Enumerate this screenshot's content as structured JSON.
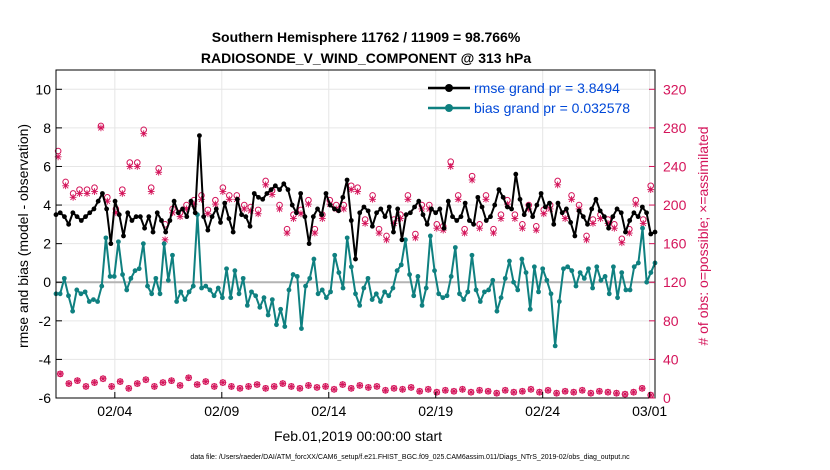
{
  "chart_data": {
    "type": "line",
    "title": "Southern Hemisphere 11762 / 11909 = 98.766%",
    "subtitle": "RADIOSONDE_V_WIND_COMPONENT @ 313 hPa",
    "xlabel": "Feb.01,2019 00:00:00 start",
    "ylabel": "rmse and bias (model - observation)",
    "y2label": "# of obs: o=possible; ×=assimilated",
    "footnote": "data file: /Users/raeder/DAI/ATM_forcXX/CAM6_setup/f.e21.FHIST_BGC.f09_025.CAM6assim.011/Diags_NTrS_2019-02/obs_diag_output.nc",
    "xlim": [
      1.0,
      29.0
    ],
    "ylim": [
      -6,
      11
    ],
    "y2lim": [
      0,
      340
    ],
    "x_ticks": [
      3.75,
      8.75,
      13.75,
      18.75,
      23.75,
      28.75
    ],
    "x_tick_labels": [
      "02/04",
      "02/09",
      "02/14",
      "02/19",
      "02/24",
      "03/01"
    ],
    "y_ticks": [
      -6,
      -4,
      -2,
      0,
      2,
      4,
      6,
      8,
      10
    ],
    "y_tick_labels": [
      "-6",
      "-4",
      "-2",
      "0",
      "2",
      "4",
      "6",
      "8",
      "10"
    ],
    "y2_ticks": [
      0,
      40,
      80,
      120,
      160,
      200,
      240,
      280,
      320
    ],
    "y2_tick_labels": [
      "0",
      "40",
      "80",
      "120",
      "160",
      "200",
      "240",
      "280",
      "320"
    ],
    "grid": true,
    "legend_position": "top-right",
    "colors": {
      "rmse": "#000000",
      "bias": "#0f8080",
      "obs": "#d4145a",
      "zero_line": "#b4b4b4",
      "legend_text": "#0048d8",
      "grid": "#e6e6e6"
    },
    "series": [
      {
        "name": "rmse grand pr = 3.8494",
        "values": [
          3.5,
          3.6,
          3.4,
          3.0,
          3.6,
          3.4,
          3.2,
          3.4,
          3.6,
          3.8,
          4.2,
          4.6,
          3.8,
          2.0,
          4.2,
          3.5,
          2.4,
          3.6,
          3.2,
          3.4,
          3.4,
          2.8,
          3.4,
          2.6,
          3.6,
          3.2,
          2.6,
          3.2,
          4.2,
          3.6,
          3.8,
          3.4,
          4.2,
          3.6,
          7.6,
          3.4,
          2.7,
          3.4,
          3.8,
          3.1,
          4.1,
          3.3,
          2.6,
          4.3,
          3.5,
          3.4,
          2.9,
          4.6,
          4.4,
          4.3,
          4.6,
          4.8,
          5.0,
          4.8,
          5.1,
          4.8,
          4.0,
          3.6,
          4.6,
          3.4,
          2.0,
          3.4,
          3.8,
          3.5,
          4.6,
          4.0,
          3.8,
          3.7,
          4.4,
          5.3,
          3.2,
          1.2,
          3.6,
          3.9,
          3.7,
          2.9,
          3.6,
          3.8,
          3.4,
          3.9,
          2.6,
          3.8,
          2.2,
          3.5,
          3.6,
          3.9,
          4.2,
          3.5,
          3.0,
          3.8,
          3.6,
          3.8,
          2.8,
          4.2,
          3.4,
          3.2,
          3.4,
          4.1,
          3.2,
          3.0,
          4.4,
          3.9,
          3.2,
          3.4,
          4.0,
          4.8,
          4.4,
          3.9,
          3.8,
          5.6,
          4.3,
          3.5,
          4.0,
          3.4,
          4.0,
          4.6,
          3.9,
          4.1,
          3.0,
          4.1,
          3.6,
          3.8,
          3.1,
          2.4,
          3.7,
          3.4,
          3.0,
          3.8,
          4.3,
          3.7,
          3.4,
          2.8,
          3.4,
          3.8,
          3.6,
          2.6,
          3.2,
          3.6,
          3.4,
          3.9,
          3.6,
          2.5,
          2.6
        ],
        "color": "#000000"
      },
      {
        "name": "bias grand pr = 0.032578",
        "values": [
          -0.6,
          -0.6,
          0.2,
          -0.7,
          -1.5,
          -0.4,
          -0.6,
          -0.5,
          -1.0,
          -0.9,
          -1.0,
          -0.2,
          2.3,
          0.3,
          0.3,
          2.1,
          0.4,
          -0.4,
          0.2,
          0.6,
          0.7,
          2.0,
          -0.2,
          -0.6,
          0.2,
          -0.6,
          2.0,
          0.1,
          1.4,
          -1.0,
          -0.5,
          -0.9,
          -0.5,
          -0.2,
          3.5,
          -0.3,
          -0.2,
          -0.4,
          -0.7,
          -0.3,
          -0.8,
          0.7,
          -0.8,
          0.6,
          -0.6,
          0.2,
          -1.2,
          -0.5,
          -0.7,
          -1.3,
          -0.8,
          -1.7,
          -0.9,
          -2.2,
          -1.4,
          -2.3,
          -0.4,
          0.4,
          0.3,
          -2.4,
          -0.2,
          0.2,
          1.2,
          -0.6,
          -0.4,
          -0.8,
          -0.5,
          1.4,
          0.5,
          -0.3,
          2.3,
          0.8,
          -0.6,
          -1.2,
          -0.3,
          0.2,
          -0.9,
          -0.6,
          -1.0,
          -0.5,
          -0.7,
          -0.3,
          0.6,
          0.9,
          2.2,
          0.4,
          -0.7,
          0.3,
          -1.2,
          -0.3,
          2.4,
          0.6,
          -0.6,
          -0.8,
          -0.7,
          0.3,
          1.8,
          -0.6,
          -0.9,
          -0.5,
          1.4,
          -0.4,
          -1.0,
          -0.5,
          -0.4,
          0.1,
          -1.5,
          -0.8,
          0.2,
          1.1,
          0.0,
          -0.4,
          1.2,
          0.5,
          -1.4,
          0.8,
          -0.5,
          0.7,
          0.1,
          -0.6,
          -3.3,
          -1.0,
          0.7,
          0.8,
          0.6,
          -0.2,
          0.5,
          0.2,
          0.7,
          -0.3,
          0.8,
          0.1,
          0.3,
          -0.6,
          0.8,
          -0.8,
          0.5,
          -0.4,
          -0.4,
          0.8,
          1.0,
          2.8,
          0.0,
          0.5,
          1.0
        ],
        "color": "#0f8080"
      },
      {
        "name": "# of obs possible",
        "x": [
          1.1,
          1.45,
          1.8,
          2.1,
          2.45,
          2.8,
          3.1,
          3.4,
          3.8,
          4.1,
          4.45,
          4.8,
          5.1,
          5.45,
          5.8,
          6.1,
          6.45,
          6.8,
          7.1,
          7.45,
          7.8,
          8.1,
          8.45,
          8.8,
          9.1,
          9.45,
          9.8,
          10.1,
          10.45,
          10.8,
          11.1,
          11.45,
          11.8,
          12.1,
          12.45,
          12.8,
          13.1,
          13.45,
          13.8,
          14.1,
          14.45,
          14.8,
          15.1,
          15.45,
          15.8,
          16.1,
          16.45,
          16.8,
          17.1,
          17.45,
          17.8,
          18.1,
          18.45,
          18.8,
          19.1,
          19.45,
          19.8,
          20.1,
          20.45,
          20.8,
          21.1,
          21.45,
          21.8,
          22.1,
          22.45,
          22.8,
          23.1,
          23.45,
          23.8,
          24.1,
          24.45,
          24.8,
          25.1,
          25.45,
          25.8,
          26.1,
          26.45,
          26.8,
          27.1,
          27.45,
          27.8,
          28.1,
          28.45,
          28.8
        ],
        "y": [
          256,
          224,
          212,
          216,
          216,
          218,
          282,
          208,
          196,
          216,
          244,
          244,
          278,
          218,
          238,
          180,
          196,
          192,
          200,
          205,
          210,
          195,
          205,
          218,
          210,
          210,
          200,
          198,
          195,
          225,
          215,
          200,
          175,
          190,
          195,
          205,
          175,
          190,
          205,
          200,
          200,
          220,
          218,
          185,
          210,
          175,
          168,
          185,
          190,
          210,
          170,
          200,
          200,
          180,
          178,
          245,
          210,
          175,
          230,
          180,
          210,
          175,
          190,
          205,
          190,
          180,
          200,
          178,
          195,
          200,
          225,
          190,
          210,
          200,
          168,
          185,
          190,
          185,
          180,
          165,
          175,
          205,
          185,
          220
        ],
        "color": "#d4145a"
      },
      {
        "name": "# of obs assimilated",
        "x": [
          1.1,
          1.45,
          1.8,
          2.1,
          2.45,
          2.8,
          3.1,
          3.4,
          3.8,
          4.1,
          4.45,
          4.8,
          5.1,
          5.45,
          5.8,
          6.1,
          6.45,
          6.8,
          7.1,
          7.45,
          7.8,
          8.1,
          8.45,
          8.8,
          9.1,
          9.45,
          9.8,
          10.1,
          10.45,
          10.8,
          11.1,
          11.45,
          11.8,
          12.1,
          12.45,
          12.8,
          13.1,
          13.45,
          13.8,
          14.1,
          14.45,
          14.8,
          15.1,
          15.45,
          15.8,
          16.1,
          16.45,
          16.8,
          17.1,
          17.45,
          17.8,
          18.1,
          18.45,
          18.8,
          19.1,
          19.45,
          19.8,
          20.1,
          20.45,
          20.8,
          21.1,
          21.45,
          21.8,
          22.1,
          22.45,
          22.8,
          23.1,
          23.45,
          23.8,
          24.1,
          24.45,
          24.8,
          25.1,
          25.45,
          25.8,
          26.1,
          26.45,
          26.8,
          27.1,
          27.45,
          27.8,
          28.1,
          28.45,
          28.8
        ],
        "y": [
          250,
          220,
          208,
          212,
          212,
          214,
          280,
          204,
          192,
          212,
          240,
          240,
          274,
          214,
          234,
          164,
          192,
          188,
          196,
          201,
          206,
          191,
          201,
          214,
          206,
          206,
          196,
          194,
          191,
          221,
          211,
          196,
          171,
          186,
          191,
          201,
          171,
          186,
          201,
          196,
          196,
          216,
          214,
          181,
          206,
          171,
          164,
          181,
          186,
          206,
          166,
          196,
          196,
          176,
          174,
          240,
          206,
          171,
          226,
          176,
          206,
          171,
          186,
          201,
          186,
          176,
          196,
          174,
          191,
          196,
          221,
          186,
          206,
          196,
          164,
          181,
          186,
          181,
          176,
          161,
          171,
          201,
          181,
          216
        ],
        "color": "#d4145a"
      },
      {
        "name": "# of obs bottom row",
        "x": [
          1.2,
          1.6,
          2.0,
          2.4,
          2.8,
          3.2,
          3.6,
          4.0,
          4.4,
          4.8,
          5.2,
          5.6,
          6.0,
          6.4,
          6.8,
          7.2,
          7.6,
          8.0,
          8.4,
          8.8,
          9.2,
          9.6,
          10.0,
          10.4,
          10.8,
          11.2,
          11.6,
          12.0,
          12.4,
          12.8,
          13.2,
          13.6,
          14.0,
          14.4,
          14.8,
          15.2,
          15.6,
          16.0,
          16.4,
          16.8,
          17.2,
          17.6,
          18.0,
          18.4,
          18.8,
          19.2,
          19.6,
          20.0,
          20.4,
          20.8,
          21.2,
          21.6,
          22.0,
          22.4,
          22.8,
          23.2,
          23.6,
          24.0,
          24.4,
          24.8,
          25.2,
          25.6,
          26.0,
          26.4,
          26.8,
          27.2,
          27.6,
          28.0,
          28.4,
          28.8
        ],
        "y": [
          25,
          15,
          18,
          12,
          16,
          20,
          12,
          17,
          10,
          15,
          19,
          12,
          16,
          18,
          13,
          21,
          14,
          17,
          12,
          16,
          12,
          10,
          12,
          14,
          10,
          12,
          15,
          12,
          10,
          13,
          11,
          12,
          9,
          14,
          10,
          13,
          11,
          12,
          8,
          10,
          9,
          11,
          7,
          9,
          6,
          8,
          7,
          9,
          6,
          8,
          7,
          5,
          8,
          6,
          7,
          9,
          6,
          8,
          5,
          7,
          6,
          8,
          5,
          7,
          6,
          5,
          4,
          6,
          10,
          3
        ],
        "color": "#d4145a"
      }
    ]
  }
}
